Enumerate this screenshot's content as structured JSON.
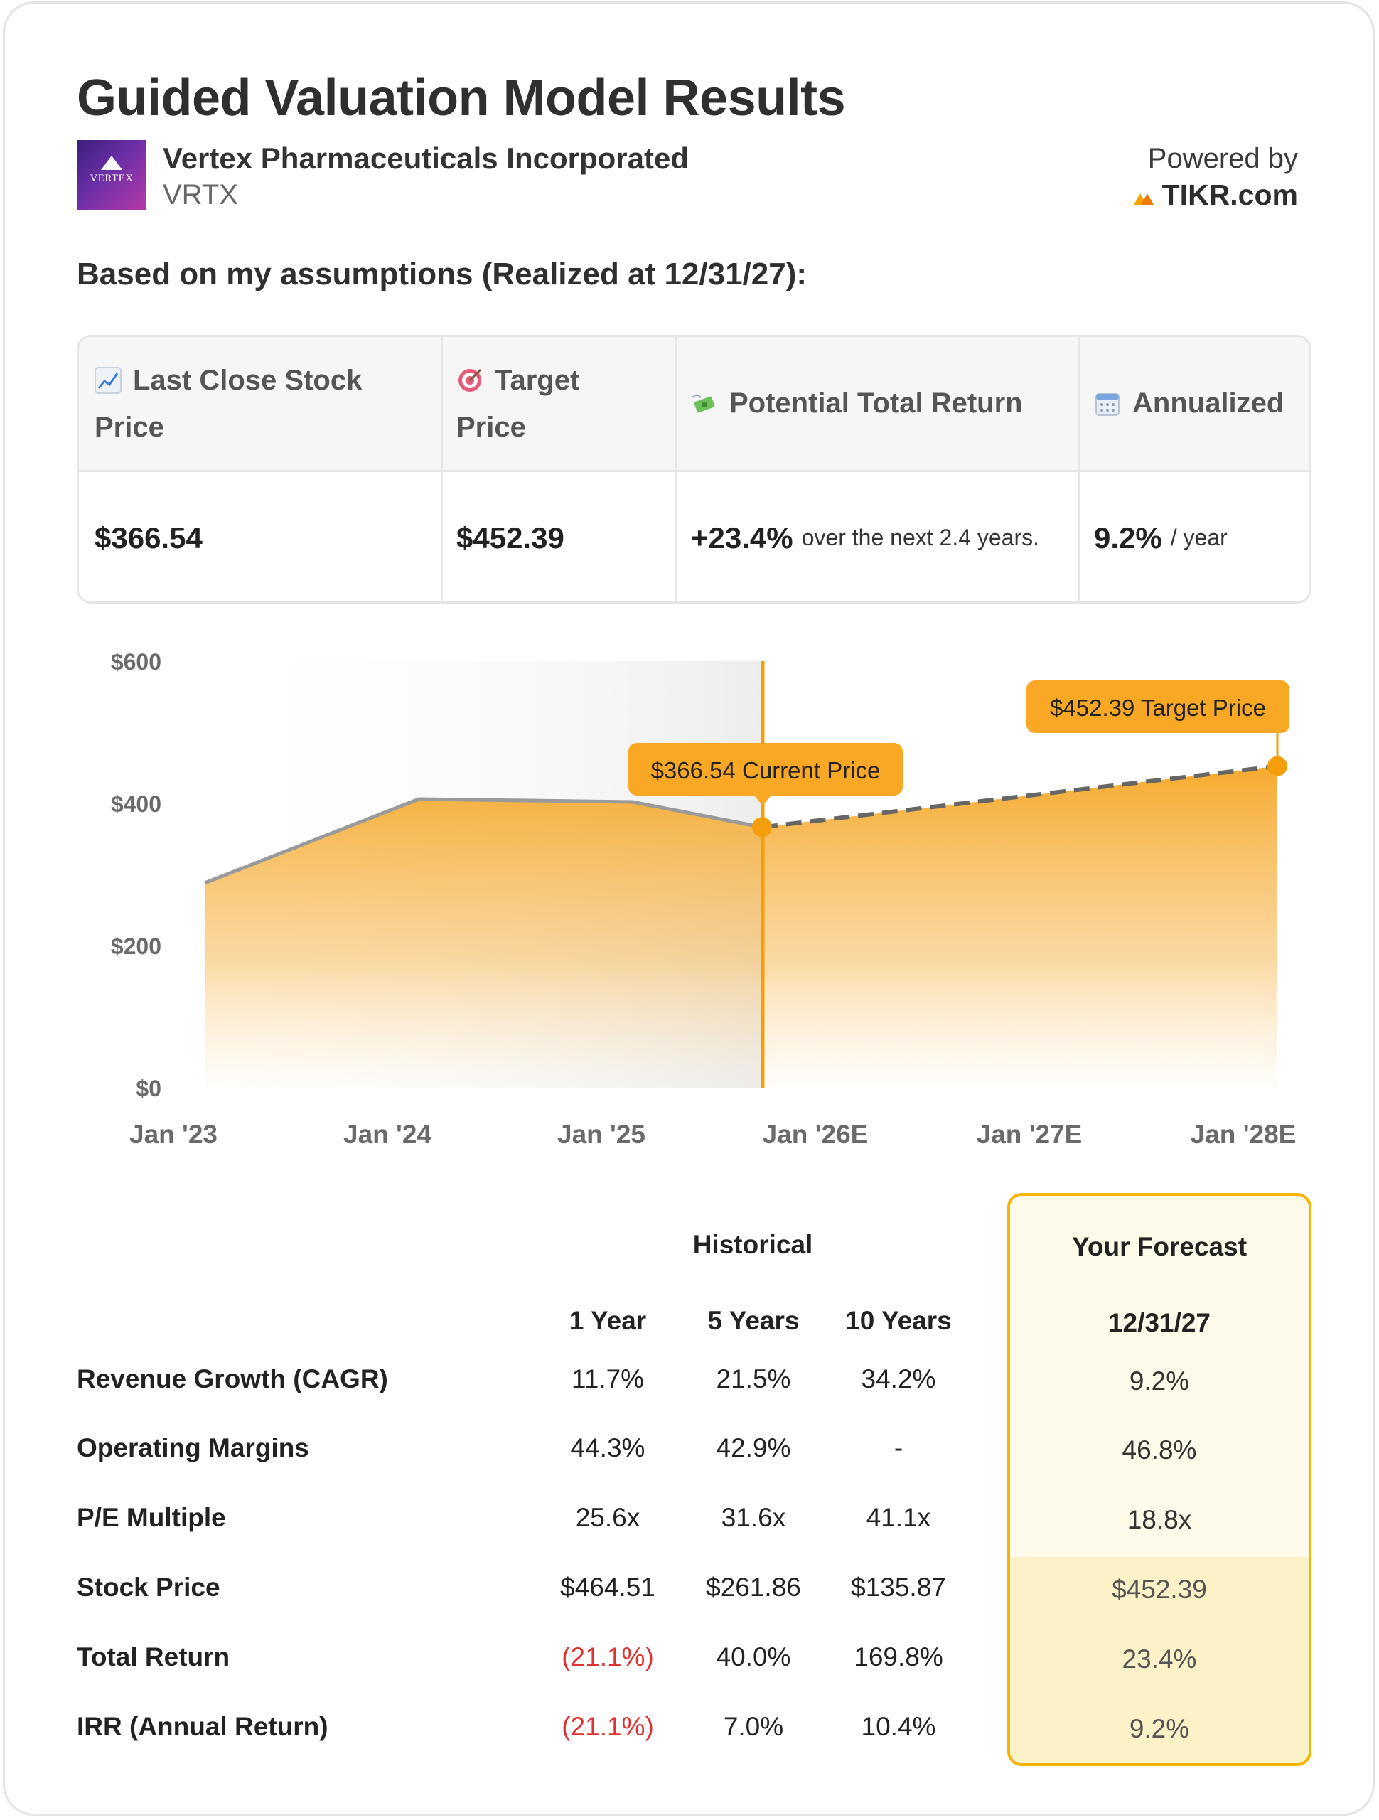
{
  "title": "Guided Valuation Model Results",
  "company": {
    "name": "Vertex Pharmaceuticals Incorporated",
    "ticker": "VRTX",
    "logo_text": "VERTEX"
  },
  "powered_by": {
    "label": "Powered by",
    "brand": "TIKR.com"
  },
  "subheading": "Based on my assumptions (Realized at 12/31/27):",
  "summary": {
    "headers": {
      "last_close_line1": "Last Close Stock",
      "last_close_line2": "Price",
      "target_line1": "Target",
      "target_line2": "Price",
      "potential": "Potential Total Return",
      "annualized": "Annualized"
    },
    "values": {
      "last_close": "$366.54",
      "target": "$452.39",
      "potential_pct": "+23.4%",
      "potential_note": "over the next 2.4 years.",
      "annualized_pct": "9.2%",
      "annualized_note": "/ year"
    },
    "icons": [
      "chart-increasing-icon",
      "target-icon",
      "money-with-wings-icon",
      "calendar-icon"
    ]
  },
  "chart_data": {
    "type": "area",
    "y_ticks": [
      "$600",
      "$400",
      "$200",
      "$0"
    ],
    "x_ticks": [
      "Jan '23",
      "Jan '24",
      "Jan '25",
      "Jan '26E",
      "Jan '27E",
      "Jan '28E"
    ],
    "ylim": [
      0,
      600
    ],
    "historical": {
      "x": [
        "Jan '23",
        "Jan '24",
        "Jan '25",
        "Oct '25"
      ],
      "y": [
        288,
        406,
        402,
        366.54
      ]
    },
    "forecast": {
      "x": [
        "Oct '25",
        "Jan '28E"
      ],
      "y": [
        366.54,
        452.39
      ]
    },
    "annotations": {
      "current": "$366.54 Current Price",
      "target": "$452.39 Target Price"
    },
    "colors": {
      "fill": "#f5a623",
      "line_hist": "#9a9a9a",
      "line_forecast": "#666666",
      "marker": "#f59e0b"
    }
  },
  "metrics": {
    "historical_label": "Historical",
    "forecast_label": "Your Forecast",
    "columns": [
      "1 Year",
      "5 Years",
      "10 Years"
    ],
    "forecast_date": "12/31/27",
    "rows": [
      {
        "label": "Revenue Growth (CAGR)",
        "values": [
          "11.7%",
          "21.5%",
          "34.2%"
        ],
        "forecast": "9.2%"
      },
      {
        "label": "Operating Margins",
        "values": [
          "44.3%",
          "42.9%",
          "-"
        ],
        "forecast": "46.8%"
      },
      {
        "label": "P/E Multiple",
        "values": [
          "25.6x",
          "31.6x",
          "41.1x"
        ],
        "forecast": "18.8x"
      },
      {
        "label": "Stock Price",
        "values": [
          "$464.51",
          "$261.86",
          "$135.87"
        ],
        "forecast": "$452.39"
      },
      {
        "label": "Total Return",
        "values": [
          "(21.1%)",
          "40.0%",
          "169.8%"
        ],
        "forecast": "23.4%"
      },
      {
        "label": "IRR (Annual Return)",
        "values": [
          "(21.1%)",
          "7.0%",
          "10.4%"
        ],
        "forecast": "9.2%"
      }
    ]
  }
}
